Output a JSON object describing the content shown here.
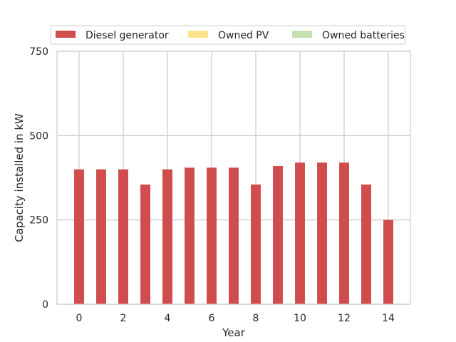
{
  "chart_data": {
    "type": "bar",
    "stacked": true,
    "xlabel": "Year",
    "ylabel": "Capacity installed in kW",
    "ylim": [
      0,
      750
    ],
    "xlim": [
      -1,
      15
    ],
    "yticks": [
      0,
      250,
      500,
      750
    ],
    "xticks": [
      0,
      2,
      4,
      6,
      8,
      10,
      12,
      14
    ],
    "grid": true,
    "legend_position": "top",
    "x": [
      0,
      1,
      2,
      3,
      4,
      5,
      6,
      7,
      8,
      9,
      10,
      11,
      12,
      13,
      14
    ],
    "series": [
      {
        "name": "Diesel generator",
        "color": "#d14d4d",
        "values": [
          400,
          400,
          400,
          355,
          400,
          405,
          405,
          405,
          355,
          410,
          420,
          420,
          420,
          355,
          250
        ]
      },
      {
        "name": "Owned PV",
        "color": "#fce48f",
        "values": [
          0,
          0,
          0,
          0,
          0,
          0,
          0,
          0,
          0,
          0,
          0,
          0,
          0,
          0,
          0
        ]
      },
      {
        "name": "Owned batteries",
        "color": "#c4e0b0",
        "values": [
          0,
          0,
          0,
          0,
          0,
          0,
          0,
          0,
          0,
          0,
          0,
          0,
          0,
          0,
          0
        ]
      }
    ]
  }
}
